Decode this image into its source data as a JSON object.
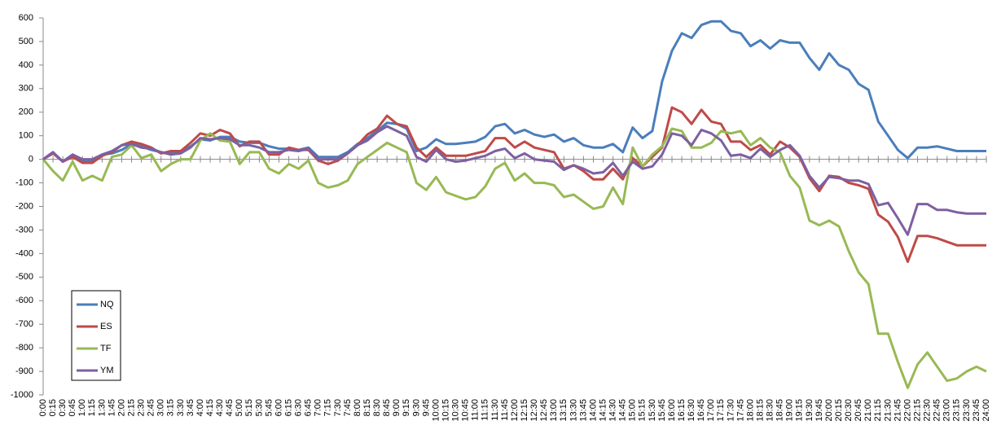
{
  "chart_data": {
    "type": "line",
    "categories": [
      "0:00",
      "0:15",
      "0:30",
      "0:45",
      "1:00",
      "1:15",
      "1:30",
      "1:45",
      "2:00",
      "2:15",
      "2:30",
      "2:45",
      "3:00",
      "3:15",
      "3:30",
      "3:45",
      "4:00",
      "4:15",
      "4:30",
      "4:45",
      "5:00",
      "5:15",
      "5:30",
      "5:45",
      "6:00",
      "6:15",
      "6:30",
      "6:45",
      "7:00",
      "7:15",
      "7:30",
      "7:45",
      "8:00",
      "8:15",
      "8:30",
      "8:45",
      "9:00",
      "9:15",
      "9:30",
      "9:45",
      "10:00",
      "10:15",
      "10:30",
      "10:45",
      "11:00",
      "11:15",
      "11:30",
      "11:45",
      "12:00",
      "12:15",
      "12:30",
      "12:45",
      "13:00",
      "13:15",
      "13:30",
      "13:45",
      "14:00",
      "14:15",
      "14:30",
      "14:45",
      "15:00",
      "15:15",
      "15:30",
      "15:45",
      "16:00",
      "16:15",
      "16:30",
      "16:45",
      "17:00",
      "17:15",
      "17:30",
      "17:45",
      "18:00",
      "18:15",
      "18:30",
      "18:45",
      "19:00",
      "19:15",
      "19:30",
      "19:45",
      "20:00",
      "20:15",
      "20:30",
      "20:45",
      "21:00",
      "21:15",
      "21:30",
      "21:45",
      "22:00",
      "22:15",
      "22:30",
      "22:45",
      "23:00",
      "23:15",
      "23:30",
      "23:45",
      "24:00"
    ],
    "series": [
      {
        "name": "NQ",
        "color": "#4a7ebb",
        "values": [
          0,
          30,
          -10,
          20,
          -5,
          -5,
          20,
          25,
          40,
          65,
          55,
          40,
          30,
          25,
          35,
          55,
          85,
          80,
          95,
          95,
          75,
          70,
          70,
          55,
          45,
          45,
          40,
          50,
          10,
          10,
          10,
          30,
          65,
          90,
          120,
          155,
          150,
          130,
          35,
          50,
          85,
          65,
          65,
          70,
          75,
          95,
          140,
          150,
          110,
          125,
          105,
          95,
          105,
          75,
          90,
          60,
          50,
          50,
          65,
          30,
          135,
          90,
          120,
          330,
          460,
          535,
          515,
          570,
          585,
          585,
          545,
          535,
          480,
          505,
          470,
          505,
          495,
          495,
          430,
          380,
          450,
          400,
          380,
          320,
          295,
          160,
          100,
          40,
          5,
          50,
          50,
          55,
          45,
          35,
          35,
          35,
          35
        ]
      },
      {
        "name": "ES",
        "color": "#be4b48",
        "values": [
          0,
          25,
          -10,
          10,
          -15,
          -15,
          15,
          30,
          60,
          75,
          65,
          50,
          25,
          35,
          35,
          70,
          110,
          100,
          125,
          110,
          55,
          75,
          75,
          20,
          20,
          50,
          40,
          40,
          -5,
          -20,
          -5,
          25,
          60,
          105,
          130,
          185,
          150,
          140,
          50,
          10,
          50,
          15,
          15,
          15,
          25,
          35,
          90,
          90,
          50,
          75,
          50,
          40,
          30,
          -40,
          -25,
          -50,
          -85,
          -85,
          -40,
          -85,
          5,
          -30,
          10,
          50,
          220,
          200,
          150,
          210,
          160,
          150,
          75,
          75,
          40,
          60,
          20,
          75,
          50,
          10,
          -80,
          -135,
          -70,
          -75,
          -100,
          -110,
          -125,
          -235,
          -265,
          -330,
          -435,
          -325,
          -325,
          -335,
          -350,
          -365,
          -365,
          -365,
          -365
        ]
      },
      {
        "name": "TF",
        "color": "#98b954",
        "values": [
          0,
          -50,
          -90,
          -10,
          -90,
          -70,
          -90,
          10,
          20,
          60,
          5,
          20,
          -50,
          -20,
          0,
          0,
          80,
          110,
          80,
          75,
          -20,
          30,
          30,
          -40,
          -60,
          -20,
          -40,
          -5,
          -100,
          -120,
          -110,
          -90,
          -20,
          10,
          40,
          70,
          50,
          30,
          -100,
          -130,
          -75,
          -140,
          -155,
          -170,
          -160,
          -115,
          -40,
          -15,
          -90,
          -60,
          -100,
          -100,
          -110,
          -160,
          -150,
          -180,
          -210,
          -200,
          -120,
          -190,
          50,
          -30,
          20,
          55,
          130,
          120,
          50,
          50,
          70,
          120,
          110,
          120,
          60,
          90,
          50,
          30,
          -70,
          -120,
          -260,
          -280,
          -260,
          -285,
          -390,
          -480,
          -530,
          -740,
          -740,
          -860,
          -970,
          -870,
          -820,
          -880,
          -940,
          -930,
          -900,
          -880,
          -900
        ]
      },
      {
        "name": "YM",
        "color": "#7d60a0",
        "values": [
          0,
          30,
          -10,
          20,
          0,
          0,
          20,
          35,
          60,
          65,
          50,
          45,
          30,
          20,
          25,
          50,
          90,
          85,
          90,
          85,
          60,
          60,
          50,
          30,
          30,
          40,
          35,
          45,
          0,
          0,
          0,
          25,
          60,
          80,
          115,
          140,
          120,
          100,
          10,
          -10,
          40,
          0,
          -10,
          -5,
          5,
          15,
          35,
          45,
          5,
          25,
          0,
          -5,
          -10,
          -45,
          -25,
          -40,
          -60,
          -55,
          -15,
          -70,
          -10,
          -40,
          -30,
          20,
          110,
          100,
          60,
          125,
          110,
          80,
          15,
          20,
          5,
          45,
          10,
          40,
          60,
          15,
          -70,
          -120,
          -75,
          -80,
          -90,
          -90,
          -105,
          -195,
          -185,
          -250,
          -320,
          -190,
          -190,
          -215,
          -215,
          -225,
          -230,
          -230,
          -230
        ]
      }
    ],
    "ylim": [
      -1000,
      600
    ],
    "yticks": [
      -1000,
      -900,
      -800,
      -700,
      -600,
      -500,
      -400,
      -300,
      -200,
      -100,
      0,
      100,
      200,
      300,
      400,
      500,
      600
    ],
    "grid": false,
    "legend": "lower-left"
  }
}
